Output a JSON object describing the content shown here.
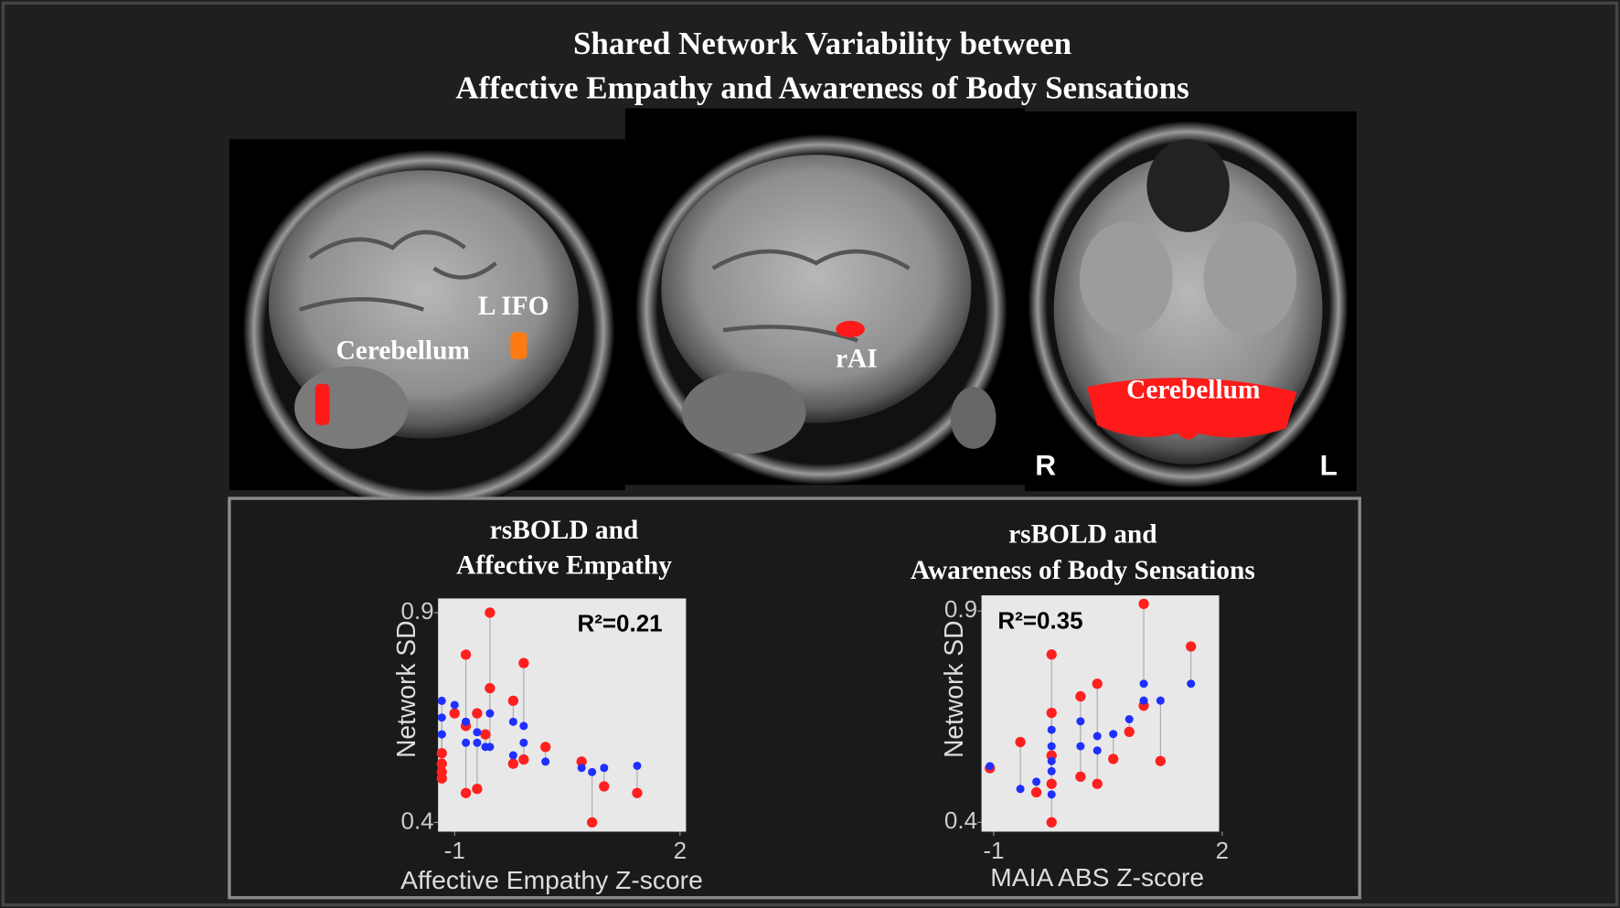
{
  "title": [
    "Shared Network Variability between",
    "Affective Empathy and Awareness of Body Sensations"
  ],
  "brain_labels": [
    "L IFO",
    "Cerebellum",
    "rAI",
    "Cerebellum",
    "R",
    "L"
  ],
  "chart_data": [
    {
      "type": "scatter",
      "title": [
        "rsBOLD and",
        "Affective Empathy"
      ],
      "xlabel": "Affective Empathy Z-score",
      "ylabel": "Network SD",
      "annotation": "R²=0.21",
      "xlim": [
        -1.22,
        2.08
      ],
      "ylim": [
        0.378,
        0.934
      ],
      "xticks": [
        -1,
        2
      ],
      "yticks": [
        0.9,
        0.4
      ],
      "x": [
        -1.17,
        -1.17,
        -1.17,
        -1.17,
        -1.0,
        -0.85,
        -0.85,
        -0.85,
        -0.7,
        -0.7,
        -0.53,
        -0.53,
        -0.59,
        -0.22,
        -0.22,
        -0.08,
        -0.08,
        0.21,
        0.69,
        0.83,
        0.99,
        1.43
      ],
      "series": [
        {
          "color": "#ff1f1f",
          "values": [
            0.565,
            0.54,
            0.52,
            0.505,
            0.66,
            0.8,
            0.47,
            0.63,
            0.66,
            0.48,
            0.9,
            0.72,
            0.61,
            0.69,
            0.54,
            0.78,
            0.55,
            0.58,
            0.545,
            0.4,
            0.486,
            0.47
          ]
        },
        {
          "color": "#1f2fff",
          "values": [
            0.69,
            0.65,
            0.61,
            0.61,
            0.68,
            0.64,
            0.59,
            0.64,
            0.615,
            0.59,
            0.66,
            0.58,
            0.58,
            0.64,
            0.56,
            0.63,
            0.59,
            0.545,
            0.53,
            0.52,
            0.53,
            0.535
          ]
        }
      ]
    },
    {
      "type": "scatter",
      "title": [
        "rsBOLD and",
        "Awareness of Body Sensations"
      ],
      "xlabel": "MAIA ABS Z-score",
      "ylabel": "Network SD",
      "annotation": "R²=0.35",
      "xlim": [
        -1.16,
        1.96
      ],
      "ylim": [
        0.378,
        0.937
      ],
      "xticks": [
        -1,
        2
      ],
      "yticks": [
        0.9,
        0.4
      ],
      "x": [
        -1.05,
        -0.65,
        -0.44,
        -0.24,
        -0.24,
        -0.24,
        -0.24,
        -0.24,
        0.14,
        0.14,
        0.36,
        0.36,
        0.57,
        0.78,
        0.97,
        0.97,
        1.19,
        1.59
      ],
      "series": [
        {
          "color": "#ff1f1f",
          "values": [
            0.528,
            0.59,
            0.471,
            0.797,
            0.659,
            0.558,
            0.491,
            0.4,
            0.698,
            0.508,
            0.728,
            0.491,
            0.55,
            0.614,
            0.676,
            0.917,
            0.545,
            0.816
          ]
        },
        {
          "color": "#1f2fff",
          "values": [
            0.533,
            0.479,
            0.496,
            0.619,
            0.58,
            0.521,
            0.545,
            0.466,
            0.58,
            0.639,
            0.604,
            0.57,
            0.609,
            0.644,
            0.688,
            0.728,
            0.688,
            0.728
          ]
        }
      ]
    }
  ]
}
